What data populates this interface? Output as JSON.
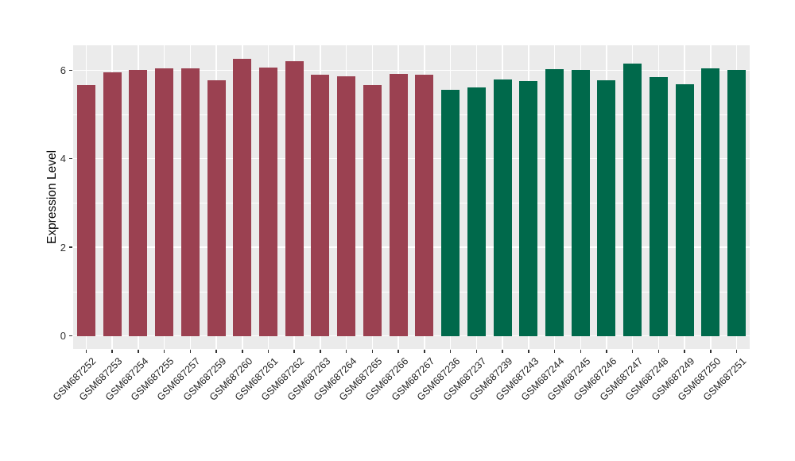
{
  "chart_data": {
    "type": "bar",
    "title": "",
    "xlabel": "",
    "ylabel": "Expression Level",
    "yticks": [
      0,
      2,
      4,
      6
    ],
    "minor_gridlines": [
      1,
      3,
      5
    ],
    "ylim": [
      0,
      6.56
    ],
    "grid": "on",
    "legend_position": "none",
    "panel_background": "#EBEBEB",
    "gridline_color": "#FFFFFF",
    "tick_color": "#333333",
    "groups": [
      {
        "id": "group1",
        "color": "#9B4151"
      },
      {
        "id": "group2",
        "color": "#00694B"
      }
    ],
    "bars": [
      {
        "label": "GSM687252",
        "value": 5.67,
        "group": "group1"
      },
      {
        "label": "GSM687253",
        "value": 5.95,
        "group": "group1"
      },
      {
        "label": "GSM687254",
        "value": 6.0,
        "group": "group1"
      },
      {
        "label": "GSM687255",
        "value": 6.05,
        "group": "group1"
      },
      {
        "label": "GSM687257",
        "value": 6.05,
        "group": "group1"
      },
      {
        "label": "GSM687259",
        "value": 5.78,
        "group": "group1"
      },
      {
        "label": "GSM687260",
        "value": 6.26,
        "group": "group1"
      },
      {
        "label": "GSM687261",
        "value": 6.06,
        "group": "group1"
      },
      {
        "label": "GSM687262",
        "value": 6.21,
        "group": "group1"
      },
      {
        "label": "GSM687263",
        "value": 5.9,
        "group": "group1"
      },
      {
        "label": "GSM687264",
        "value": 5.87,
        "group": "group1"
      },
      {
        "label": "GSM687265",
        "value": 5.66,
        "group": "group1"
      },
      {
        "label": "GSM687266",
        "value": 5.92,
        "group": "group1"
      },
      {
        "label": "GSM687267",
        "value": 5.89,
        "group": "group1"
      },
      {
        "label": "GSM687236",
        "value": 5.55,
        "group": "group2"
      },
      {
        "label": "GSM687237",
        "value": 5.61,
        "group": "group2"
      },
      {
        "label": "GSM687239",
        "value": 5.79,
        "group": "group2"
      },
      {
        "label": "GSM687243",
        "value": 5.75,
        "group": "group2"
      },
      {
        "label": "GSM687244",
        "value": 6.02,
        "group": "group2"
      },
      {
        "label": "GSM687245",
        "value": 6.01,
        "group": "group2"
      },
      {
        "label": "GSM687246",
        "value": 5.78,
        "group": "group2"
      },
      {
        "label": "GSM687247",
        "value": 6.15,
        "group": "group2"
      },
      {
        "label": "GSM687248",
        "value": 5.85,
        "group": "group2"
      },
      {
        "label": "GSM687249",
        "value": 5.68,
        "group": "group2"
      },
      {
        "label": "GSM687250",
        "value": 6.05,
        "group": "group2"
      },
      {
        "label": "GSM687251",
        "value": 6.0,
        "group": "group2"
      }
    ]
  }
}
